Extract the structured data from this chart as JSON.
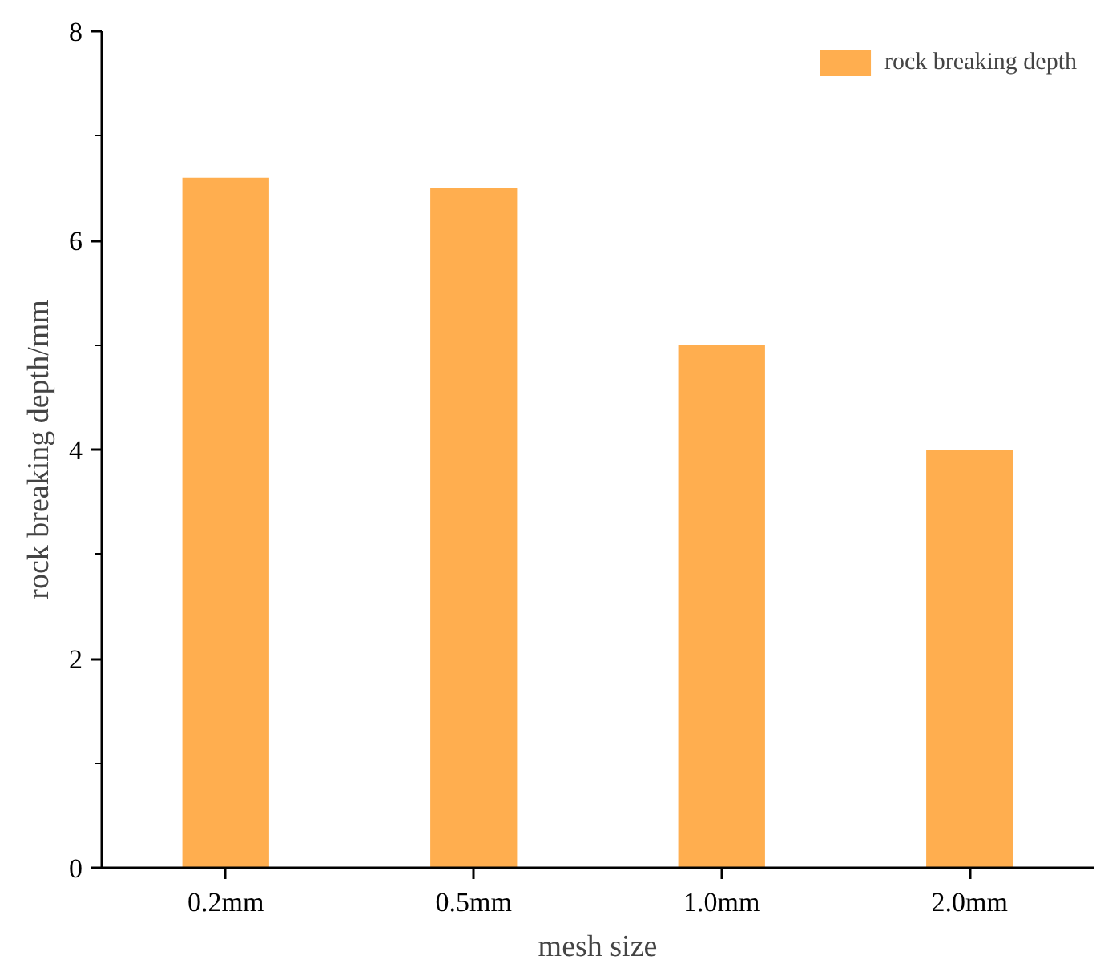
{
  "chart_data": {
    "type": "bar",
    "xlabel": "mesh size",
    "ylabel": "rock breaking depth/mm",
    "categories": [
      "0.2mm",
      "0.5mm",
      "1.0mm",
      "2.0mm"
    ],
    "series": [
      {
        "name": "rock breaking depth",
        "color": "#ffae4f",
        "values": [
          6.6,
          6.5,
          5.0,
          4.0
        ]
      }
    ],
    "ylim": [
      0,
      8
    ],
    "yticks": [
      0,
      2,
      4,
      6,
      8
    ],
    "grid": false,
    "legend": "top right"
  }
}
